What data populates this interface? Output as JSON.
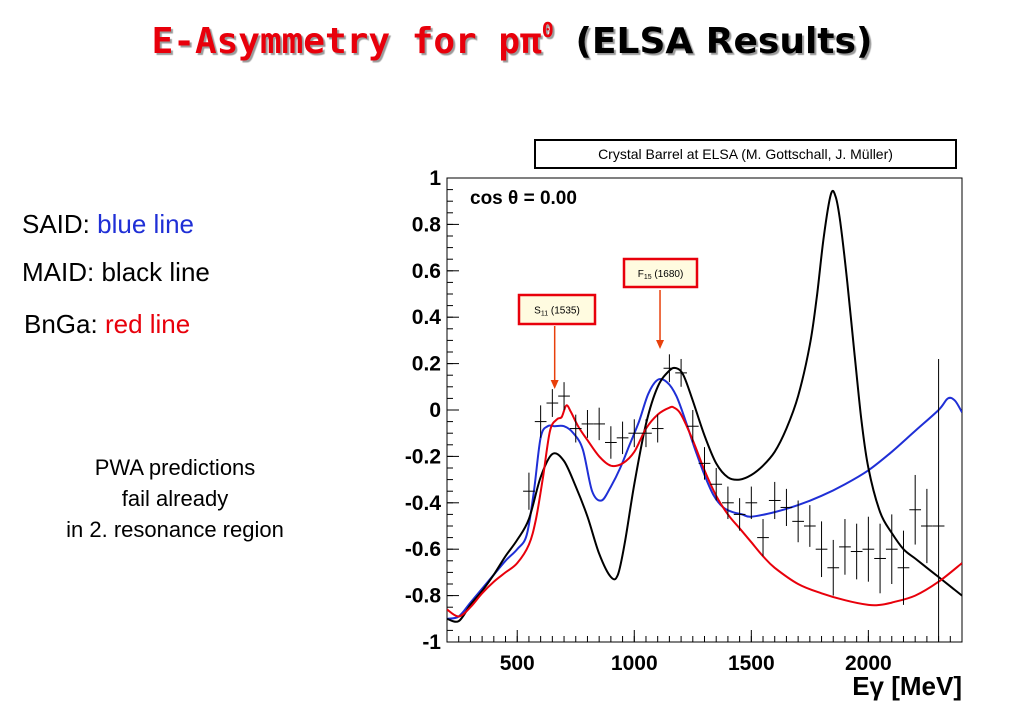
{
  "title": {
    "main": "E-Asymmetry for pπ",
    "superscript": "0",
    "paren": "(ELSA Results)"
  },
  "legend_text": {
    "said_label": "SAID:",
    "said_color_name": "blue line",
    "maid_label": "MAID:",
    "maid_color_name": "black line",
    "bnga_label": "BnGa:",
    "bnga_color_name": "red line"
  },
  "note": [
    "PWA predictions",
    "fail already",
    "in 2. resonance region"
  ],
  "credit": "Crystal Barrel at  ELSA (M. Gottschall, J. Müller)",
  "colors": {
    "said": "#1f2fd6",
    "maid": "#000000",
    "bnga": "#e8000b",
    "title_red": "#e8000b"
  },
  "chart_data": {
    "type": "line",
    "title": "cos θ = 0.00",
    "xlabel": "Eγ [MeV]",
    "ylabel": "",
    "xlim": [
      200,
      2400
    ],
    "ylim": [
      -1,
      1
    ],
    "x_ticks": [
      500,
      1000,
      1500,
      2000
    ],
    "y_ticks": [
      1,
      0.8,
      0.6,
      0.4,
      0.2,
      0,
      -0.2,
      -0.4,
      -0.6,
      -0.8,
      -1
    ],
    "annotations": [
      {
        "label_main": "S",
        "label_sub": "11",
        "label_mass": "(1535)",
        "x": 660
      },
      {
        "label_main": "F",
        "label_sub": "15",
        "label_mass": "(1680)",
        "x": 1110
      }
    ],
    "series": [
      {
        "name": "SAID",
        "color": "#1f2fd6",
        "x": [
          200,
          250,
          300,
          350,
          400,
          450,
          500,
          540,
          570,
          600,
          630,
          660,
          700,
          740,
          780,
          820,
          860,
          900,
          940,
          980,
          1020,
          1060,
          1100,
          1140,
          1180,
          1220,
          1260,
          1300,
          1340,
          1380,
          1420,
          1460,
          1500,
          1600,
          1700,
          1800,
          1900,
          2000,
          2100,
          2200,
          2300,
          2340,
          2370,
          2400
        ],
        "y": [
          -0.9,
          -0.89,
          -0.83,
          -0.77,
          -0.71,
          -0.65,
          -0.6,
          -0.54,
          -0.36,
          -0.12,
          -0.07,
          -0.07,
          -0.07,
          -0.1,
          -0.17,
          -0.35,
          -0.39,
          -0.33,
          -0.25,
          -0.15,
          -0.05,
          0.07,
          0.13,
          0.12,
          0.06,
          -0.05,
          -0.17,
          -0.28,
          -0.37,
          -0.42,
          -0.44,
          -0.45,
          -0.46,
          -0.44,
          -0.41,
          -0.37,
          -0.32,
          -0.26,
          -0.18,
          -0.09,
          0.0,
          0.05,
          0.04,
          -0.01
        ]
      },
      {
        "name": "MAID",
        "color": "#000000",
        "x": [
          200,
          250,
          300,
          350,
          400,
          450,
          500,
          550,
          600,
          650,
          700,
          750,
          800,
          850,
          900,
          930,
          960,
          1000,
          1050,
          1100,
          1150,
          1180,
          1210,
          1250,
          1300,
          1350,
          1400,
          1450,
          1500,
          1550,
          1600,
          1650,
          1700,
          1750,
          1780,
          1810,
          1840,
          1860,
          1880,
          1910,
          1940,
          1970,
          2000,
          2050,
          2100,
          2150,
          2200,
          2250,
          2300,
          2350,
          2400
        ],
        "y": [
          -0.9,
          -0.91,
          -0.84,
          -0.78,
          -0.71,
          -0.63,
          -0.56,
          -0.47,
          -0.29,
          -0.19,
          -0.22,
          -0.33,
          -0.46,
          -0.62,
          -0.72,
          -0.71,
          -0.57,
          -0.32,
          -0.06,
          0.1,
          0.17,
          0.18,
          0.15,
          0.04,
          -0.11,
          -0.23,
          -0.29,
          -0.3,
          -0.28,
          -0.24,
          -0.18,
          -0.08,
          0.06,
          0.28,
          0.49,
          0.75,
          0.93,
          0.92,
          0.81,
          0.55,
          0.25,
          -0.04,
          -0.25,
          -0.44,
          -0.53,
          -0.6,
          -0.64,
          -0.68,
          -0.72,
          -0.76,
          -0.8
        ]
      },
      {
        "name": "BnGa",
        "color": "#e8000b",
        "x": [
          200,
          250,
          300,
          350,
          400,
          450,
          500,
          550,
          580,
          610,
          640,
          670,
          690,
          710,
          730,
          760,
          800,
          850,
          900,
          950,
          1000,
          1050,
          1100,
          1150,
          1170,
          1200,
          1250,
          1300,
          1350,
          1400,
          1450,
          1500,
          1550,
          1600,
          1700,
          1800,
          1900,
          2000,
          2050,
          2100,
          2200,
          2300,
          2400
        ],
        "y": [
          -0.86,
          -0.89,
          -0.85,
          -0.79,
          -0.74,
          -0.7,
          -0.66,
          -0.58,
          -0.47,
          -0.29,
          -0.09,
          -0.04,
          -0.03,
          0.02,
          -0.01,
          -0.07,
          -0.13,
          -0.2,
          -0.24,
          -0.23,
          -0.18,
          -0.08,
          -0.02,
          0.01,
          0.01,
          -0.02,
          -0.13,
          -0.26,
          -0.37,
          -0.45,
          -0.51,
          -0.57,
          -0.63,
          -0.68,
          -0.75,
          -0.79,
          -0.82,
          -0.84,
          -0.84,
          -0.83,
          -0.8,
          -0.74,
          -0.66
        ]
      },
      {
        "name": "Data",
        "color": "#000000",
        "style": "points_with_errors",
        "x": [
          550,
          600,
          650,
          700,
          750,
          800,
          850,
          900,
          950,
          1000,
          1050,
          1100,
          1150,
          1200,
          1250,
          1300,
          1350,
          1400,
          1450,
          1500,
          1550,
          1600,
          1650,
          1700,
          1750,
          1800,
          1850,
          1900,
          1950,
          2000,
          2050,
          2100,
          2150,
          2200,
          2250,
          2300
        ],
        "y": [
          -0.35,
          -0.05,
          0.03,
          0.06,
          -0.08,
          -0.06,
          -0.06,
          -0.14,
          -0.12,
          -0.1,
          -0.1,
          -0.08,
          0.18,
          0.16,
          -0.07,
          -0.23,
          -0.32,
          -0.4,
          -0.45,
          -0.4,
          -0.55,
          -0.39,
          -0.42,
          -0.48,
          -0.5,
          -0.6,
          -0.68,
          -0.59,
          -0.61,
          -0.6,
          -0.64,
          -0.6,
          -0.68,
          -0.43,
          -0.5,
          -0.5
        ],
        "xerr": 25,
        "yerr": [
          0.08,
          0.07,
          0.06,
          0.06,
          0.06,
          0.06,
          0.07,
          0.07,
          0.07,
          0.06,
          0.06,
          0.06,
          0.06,
          0.06,
          0.07,
          0.07,
          0.07,
          0.07,
          0.07,
          0.07,
          0.08,
          0.08,
          0.08,
          0.09,
          0.09,
          0.12,
          0.12,
          0.12,
          0.12,
          0.14,
          0.15,
          0.15,
          0.16,
          0.15,
          0.16,
          0.72
        ]
      }
    ]
  }
}
